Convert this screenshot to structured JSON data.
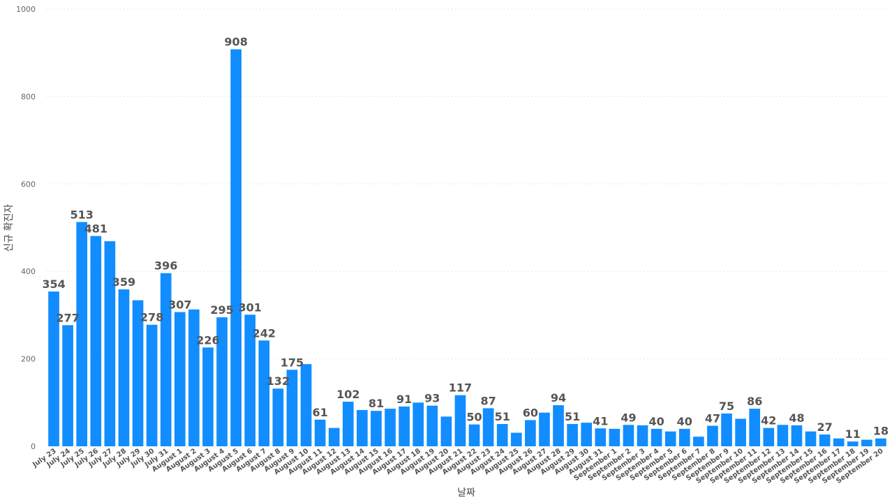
{
  "chart_data": {
    "type": "bar",
    "xlabel": "날짜",
    "ylabel": "신규 확진자",
    "ylim": [
      0,
      1000
    ],
    "yticks": [
      0,
      200,
      400,
      600,
      800,
      1000
    ],
    "grid": true,
    "bar_color": "#118DFF",
    "categories": [
      "July 23",
      "July 24",
      "July 25",
      "July 26",
      "July 27",
      "July 28",
      "July 29",
      "July 30",
      "July 31",
      "August 1",
      "August 2",
      "August 3",
      "August 4",
      "August 5",
      "August 6",
      "August 7",
      "August 8",
      "August 9",
      "August 10",
      "August 11",
      "August 12",
      "August 13",
      "August 14",
      "August 15",
      "August 16",
      "August 17",
      "August 18",
      "August 19",
      "August 20",
      "August 21",
      "August 22",
      "August 23",
      "August 24",
      "August 25",
      "August 26",
      "August 27",
      "August 28",
      "August 29",
      "August 30",
      "August 31",
      "September 1",
      "September 2",
      "September 3",
      "September 4",
      "September 5",
      "September 6",
      "September 7",
      "September 8",
      "September 9",
      "September 10",
      "September 11",
      "September 12",
      "September 13",
      "September 14",
      "September 15",
      "September 16",
      "September 17",
      "September 18",
      "September 19",
      "September 20"
    ],
    "values": [
      354,
      277,
      513,
      481,
      469,
      359,
      334,
      278,
      396,
      307,
      313,
      226,
      295,
      908,
      301,
      242,
      132,
      175,
      188,
      61,
      42,
      102,
      83,
      81,
      86,
      91,
      100,
      93,
      68,
      117,
      50,
      87,
      51,
      31,
      60,
      77,
      94,
      51,
      54,
      41,
      40,
      49,
      48,
      40,
      34,
      40,
      22,
      47,
      75,
      63,
      86,
      42,
      49,
      48,
      34,
      27,
      18,
      11,
      15,
      18
    ],
    "data_labels": [
      "354",
      "277",
      "513",
      "481",
      "",
      "359",
      "",
      "278",
      "396",
      "307",
      "",
      "226",
      "295",
      "908",
      "301",
      "242",
      "132",
      "175",
      "",
      "61",
      "",
      "102",
      "",
      "81",
      "",
      "91",
      "",
      "93",
      "",
      "117",
      "50",
      "87",
      "51",
      "",
      "60",
      "",
      "94",
      "51",
      "",
      "41",
      "",
      "49",
      "",
      "40",
      "",
      "40",
      "",
      "47",
      "75",
      "",
      "86",
      "42",
      "",
      "48",
      "",
      "27",
      "",
      "11",
      "",
      "18"
    ]
  }
}
